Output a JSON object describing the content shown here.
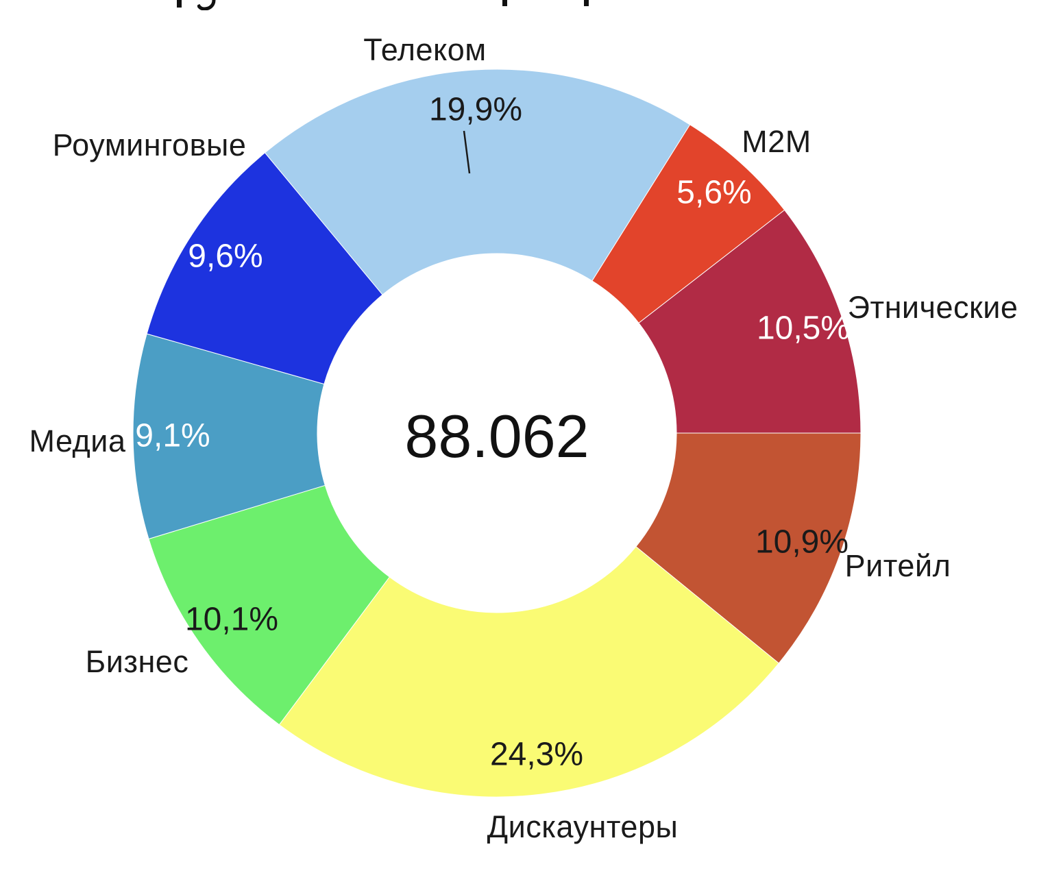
{
  "chart_data": {
    "type": "pie",
    "variant": "donut",
    "center_total": "88.062",
    "start_angle_deg": -39.6,
    "hole_ratio": 0.493,
    "legend_position": "none",
    "value_suffix": "%",
    "decimal_separator": ",",
    "slices": [
      {
        "label": "Телеком",
        "value": 19.9,
        "pct_label": "19,9%",
        "color": "#A5CEEE",
        "pct_text_color": "#1a1a1a"
      },
      {
        "label": "M2M",
        "value": 5.6,
        "pct_label": "5,6%",
        "color": "#E2442B",
        "pct_text_color": "#ffffff"
      },
      {
        "label": "Этнические",
        "value": 10.5,
        "pct_label": "10,5%",
        "color": "#B12B45",
        "pct_text_color": "#ffffff"
      },
      {
        "label": "Ритейл",
        "value": 10.9,
        "pct_label": "10,9%",
        "color": "#C25433",
        "pct_text_color": "#1a1a1a"
      },
      {
        "label": "Дискаунтеры",
        "value": 24.3,
        "pct_label": "24,3%",
        "color": "#FAFB74",
        "pct_text_color": "#1a1a1a"
      },
      {
        "label": "Бизнес",
        "value": 10.1,
        "pct_label": "10,1%",
        "color": "#6DEF6D",
        "pct_text_color": "#1a1a1a"
      },
      {
        "label": "Медиа",
        "value": 9.1,
        "pct_label": "9,1%",
        "color": "#4B9EC5",
        "pct_text_color": "#ffffff"
      },
      {
        "label": "Роуминговые",
        "value": 9.6,
        "pct_label": "9,6%",
        "color": "#1D33DF",
        "pct_text_color": "#ffffff"
      }
    ]
  }
}
